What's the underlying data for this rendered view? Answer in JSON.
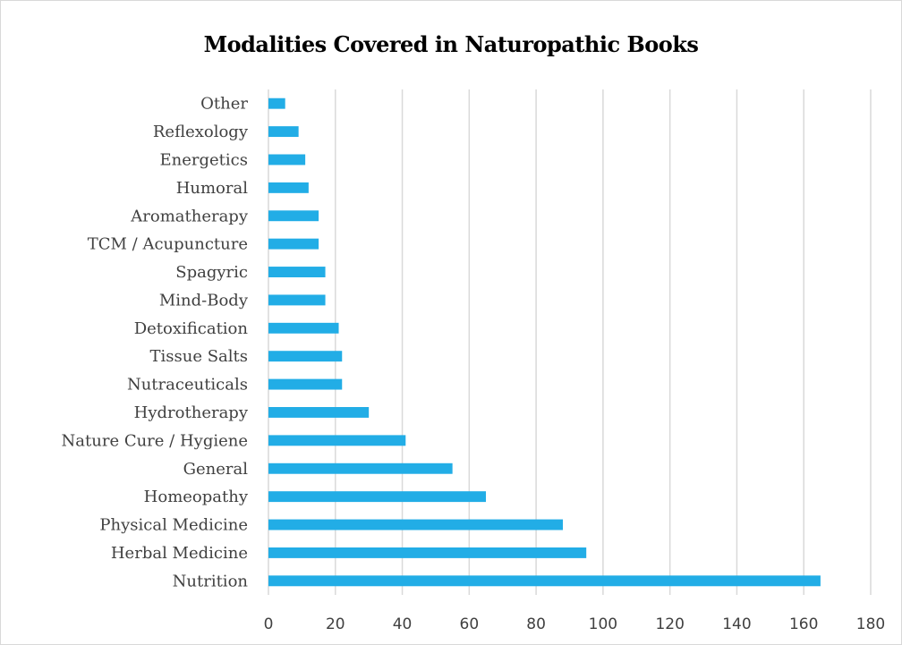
{
  "chart_data": {
    "type": "bar",
    "orientation": "horizontal",
    "title": "Modalities Covered in Naturopathic Books",
    "categories": [
      "Nutrition",
      "Herbal Medicine",
      "Physical Medicine",
      "Homeopathy",
      "General",
      "Nature Cure / Hygiene",
      "Hydrotherapy",
      "Nutraceuticals",
      "Tissue Salts",
      "Detoxification",
      "Mind-Body",
      "Spagyric",
      "TCM / Acupuncture",
      "Aromatherapy",
      "Humoral",
      "Energetics",
      "Reflexology",
      "Other"
    ],
    "values": [
      165,
      95,
      88,
      65,
      55,
      41,
      30,
      22,
      22,
      21,
      17,
      17,
      15,
      15,
      12,
      11,
      9,
      5
    ],
    "xticks": [
      "0",
      "20",
      "40",
      "60",
      "80",
      "100",
      "120",
      "140",
      "160",
      "180"
    ],
    "xlim": [
      0,
      180
    ],
    "xlabel": "",
    "ylabel": "",
    "grid": "vertical",
    "legend": "none",
    "bar_color": "#22ade6",
    "grid_color": "#d9d9d9"
  }
}
